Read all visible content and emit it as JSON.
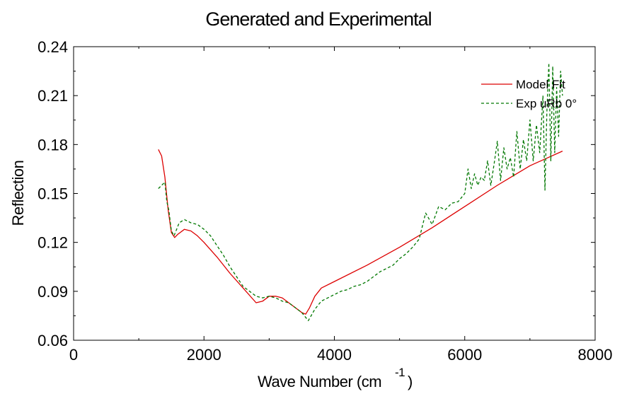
{
  "chart_data": {
    "type": "line",
    "title": "Generated and Experimental",
    "xlabel": "Wave Number (cm",
    "xlabel_superscript": "-1",
    "xlabel_suffix": ")",
    "ylabel": "Reflection",
    "xlim": [
      0,
      8000
    ],
    "ylim": [
      0.06,
      0.24
    ],
    "xticks": [
      0,
      2000,
      4000,
      6000,
      8000
    ],
    "xtick_labels": [
      "0",
      "2000",
      "4000",
      "6000",
      "8000"
    ],
    "yticks": [
      0.06,
      0.09,
      0.12,
      0.15,
      0.18,
      0.21,
      0.24
    ],
    "ytick_labels": [
      "0.06",
      "0.09",
      "0.12",
      "0.15",
      "0.18",
      "0.21",
      "0.24"
    ],
    "grid": false,
    "legend_position": "top-right",
    "series": [
      {
        "name": "Model Fit",
        "color": "#dd0000",
        "style": "solid",
        "x": [
          1300,
          1350,
          1400,
          1450,
          1500,
          1550,
          1600,
          1700,
          1800,
          1900,
          2000,
          2200,
          2400,
          2600,
          2800,
          2900,
          3000,
          3100,
          3200,
          3300,
          3400,
          3500,
          3560,
          3620,
          3700,
          3800,
          4000,
          4500,
          5000,
          5500,
          6000,
          6500,
          7000,
          7500
        ],
        "y": [
          0.177,
          0.173,
          0.16,
          0.14,
          0.126,
          0.123,
          0.125,
          0.128,
          0.127,
          0.124,
          0.12,
          0.111,
          0.101,
          0.092,
          0.083,
          0.084,
          0.087,
          0.087,
          0.086,
          0.083,
          0.08,
          0.077,
          0.076,
          0.08,
          0.087,
          0.092,
          0.096,
          0.106,
          0.117,
          0.129,
          0.142,
          0.155,
          0.167,
          0.176
        ]
      },
      {
        "name": "Exp uRb 0°",
        "color": "#007700",
        "style": "dashed",
        "x": [
          1300,
          1350,
          1400,
          1430,
          1460,
          1500,
          1540,
          1580,
          1620,
          1660,
          1700,
          1800,
          1900,
          2000,
          2100,
          2200,
          2300,
          2400,
          2500,
          2600,
          2700,
          2800,
          2900,
          3000,
          3100,
          3200,
          3300,
          3400,
          3500,
          3600,
          3700,
          3800,
          3900,
          4000,
          4100,
          4200,
          4300,
          4400,
          4500,
          4600,
          4700,
          4800,
          4900,
          5000,
          5100,
          5200,
          5300,
          5400,
          5500,
          5600,
          5700,
          5800,
          5900,
          6000,
          6050,
          6100,
          6150,
          6200,
          6250,
          6300,
          6350,
          6400,
          6450,
          6500,
          6550,
          6600,
          6650,
          6700,
          6750,
          6800,
          6850,
          6900,
          6950,
          7000,
          7050,
          7100,
          7150,
          7200,
          7230,
          7260,
          7290,
          7320,
          7350,
          7380,
          7410,
          7440,
          7470,
          7500
        ],
        "y": [
          0.153,
          0.155,
          0.157,
          0.145,
          0.14,
          0.127,
          0.124,
          0.128,
          0.132,
          0.133,
          0.134,
          0.132,
          0.131,
          0.128,
          0.124,
          0.118,
          0.112,
          0.105,
          0.099,
          0.093,
          0.09,
          0.087,
          0.086,
          0.087,
          0.086,
          0.084,
          0.083,
          0.08,
          0.077,
          0.072,
          0.079,
          0.084,
          0.086,
          0.088,
          0.09,
          0.091,
          0.093,
          0.094,
          0.096,
          0.099,
          0.102,
          0.104,
          0.106,
          0.11,
          0.113,
          0.117,
          0.122,
          0.138,
          0.131,
          0.142,
          0.14,
          0.144,
          0.145,
          0.15,
          0.165,
          0.153,
          0.162,
          0.155,
          0.16,
          0.158,
          0.17,
          0.155,
          0.168,
          0.182,
          0.158,
          0.178,
          0.165,
          0.172,
          0.16,
          0.188,
          0.165,
          0.183,
          0.17,
          0.195,
          0.17,
          0.192,
          0.175,
          0.21,
          0.152,
          0.2,
          0.23,
          0.17,
          0.228,
          0.175,
          0.215,
          0.185,
          0.225,
          0.21
        ]
      }
    ]
  }
}
